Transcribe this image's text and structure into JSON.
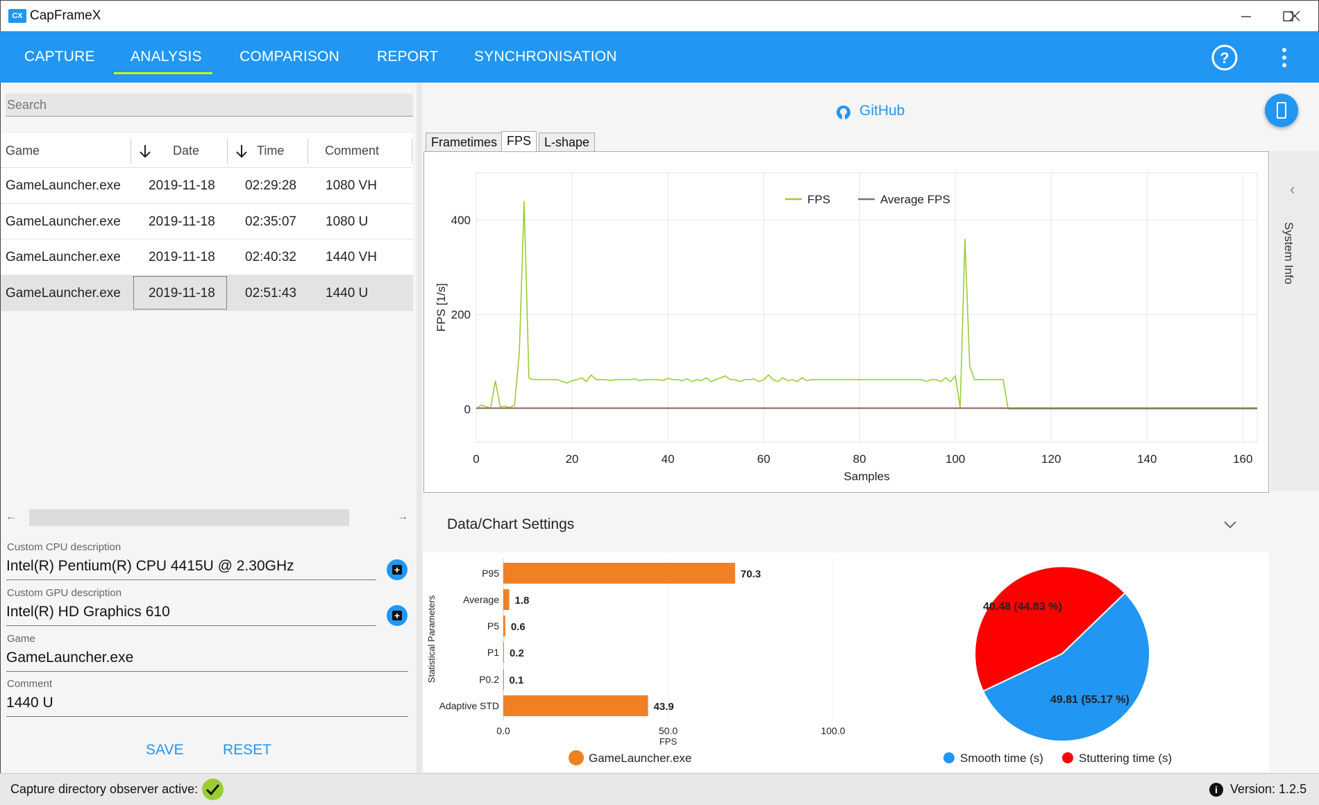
{
  "window": {
    "title": "CapFrameX",
    "logo": "CX"
  },
  "nav": {
    "tabs": [
      "CAPTURE",
      "ANALYSIS",
      "COMPARISON",
      "REPORT",
      "SYNCHRONISATION"
    ],
    "active_tab": "ANALYSIS"
  },
  "search": {
    "placeholder": "Search"
  },
  "grid": {
    "headers": [
      "Game",
      "Date",
      "Time",
      "Comment"
    ],
    "rows": [
      {
        "game": "GameLauncher.exe",
        "date": "2019-11-18",
        "time": "02:29:28",
        "comment": "1080 VH"
      },
      {
        "game": "GameLauncher.exe",
        "date": "2019-11-18",
        "time": "02:35:07",
        "comment": "1080 U"
      },
      {
        "game": "GameLauncher.exe",
        "date": "2019-11-18",
        "time": "02:40:32",
        "comment": "1440 VH"
      },
      {
        "game": "GameLauncher.exe",
        "date": "2019-11-18",
        "time": "02:51:43",
        "comment": "1440 U"
      }
    ]
  },
  "details": {
    "cpu_label": "Custom CPU description",
    "cpu_value": "Intel(R) Pentium(R) CPU 4415U @ 2.30GHz",
    "gpu_label": "Custom GPU description",
    "gpu_value": "Intel(R) HD Graphics 610",
    "game_label": "Game",
    "game_value": "GameLauncher.exe",
    "comment_label": "Comment",
    "comment_value": "1440 U",
    "save_label": "SAVE",
    "reset_label": "RESET"
  },
  "github_label": "GitHub",
  "chart_tabs": [
    "Frametimes",
    "FPS",
    "L-shape"
  ],
  "active_chart_tab": "FPS",
  "side_panel": {
    "label": "System Info"
  },
  "settings": {
    "title": "Data/Chart Settings"
  },
  "status": {
    "observer_text": "Capture directory observer active:",
    "version_text": "Version:  1.2.5"
  },
  "colors": {
    "accent": "#2196F3",
    "fps_line": "#9ACD32",
    "avg_line": "#8D6E63",
    "bar": "#F08024",
    "smooth": "#2196F3",
    "stutter": "#FF0000"
  },
  "chart_data": [
    {
      "type": "line",
      "title": "",
      "xlabel": "Samples",
      "ylabel": "FPS [1/s]",
      "xlim": [
        0,
        163
      ],
      "ylim": [
        -70,
        500
      ],
      "xticks": [
        0,
        20,
        40,
        60,
        80,
        100,
        120,
        140,
        160
      ],
      "yticks": [
        0,
        200,
        400
      ],
      "legend": [
        "FPS",
        "Average FPS"
      ],
      "series": [
        {
          "name": "FPS",
          "x": [
            0,
            1,
            2,
            3,
            4,
            5,
            6,
            7,
            8,
            9,
            10,
            11,
            12,
            13,
            14,
            15,
            16,
            17,
            18,
            19,
            20,
            21,
            22,
            23,
            24,
            25,
            26,
            27,
            28,
            29,
            30,
            31,
            32,
            33,
            34,
            35,
            36,
            37,
            38,
            39,
            40,
            41,
            42,
            43,
            44,
            45,
            46,
            47,
            48,
            49,
            50,
            51,
            52,
            53,
            54,
            55,
            56,
            57,
            58,
            59,
            60,
            61,
            62,
            63,
            64,
            65,
            66,
            67,
            68,
            69,
            70,
            71,
            72,
            73,
            74,
            75,
            76,
            77,
            78,
            79,
            80,
            81,
            82,
            83,
            84,
            85,
            86,
            87,
            88,
            89,
            90,
            91,
            92,
            93,
            94,
            95,
            96,
            97,
            98,
            99,
            100,
            101,
            102,
            103,
            104,
            105,
            106,
            107,
            108,
            109,
            110,
            111,
            112,
            120,
            130,
            140,
            150,
            160,
            163
          ],
          "values": [
            0,
            8,
            5,
            2,
            60,
            5,
            6,
            3,
            8,
            120,
            440,
            65,
            62,
            62,
            62,
            62,
            62,
            62,
            58,
            55,
            60,
            62,
            66,
            58,
            72,
            62,
            62,
            62,
            60,
            62,
            62,
            62,
            62,
            64,
            60,
            62,
            62,
            62,
            62,
            60,
            65,
            62,
            62,
            60,
            64,
            58,
            62,
            60,
            66,
            58,
            62,
            66,
            70,
            62,
            62,
            58,
            62,
            62,
            64,
            58,
            62,
            72,
            62,
            58,
            66,
            60,
            62,
            58,
            66,
            60,
            62,
            62,
            62,
            62,
            62,
            62,
            62,
            62,
            62,
            62,
            62,
            62,
            62,
            62,
            62,
            62,
            62,
            62,
            62,
            62,
            62,
            62,
            62,
            62,
            58,
            62,
            62,
            58,
            66,
            58,
            70,
            2,
            360,
            90,
            62,
            62,
            62,
            62,
            62,
            62,
            62,
            0,
            0,
            0,
            0,
            0,
            0,
            0,
            0
          ]
        },
        {
          "name": "Average FPS",
          "x": [
            0,
            163
          ],
          "values": [
            1.8,
            1.8
          ]
        }
      ]
    },
    {
      "type": "bar",
      "orientation": "horizontal",
      "categories": [
        "P95",
        "Average",
        "P5",
        "P1",
        "P0.2",
        "Adaptive STD"
      ],
      "values": [
        70.3,
        1.8,
        0.6,
        0.2,
        0.1,
        43.9
      ],
      "xlabel": "FPS",
      "ylabel": "Statistical Parameters",
      "xticks": [
        "0.0",
        "50.0",
        "100.0"
      ],
      "xlim": [
        0,
        100
      ],
      "legend": [
        "GameLauncher.exe"
      ]
    },
    {
      "type": "pie",
      "labels": [
        "Smooth time (s)",
        "Stuttering time (s)"
      ],
      "values": [
        49.81,
        40.48
      ],
      "data_labels": [
        "49.81 (55.17 %)",
        "40.48 (44.83 %)"
      ]
    }
  ]
}
